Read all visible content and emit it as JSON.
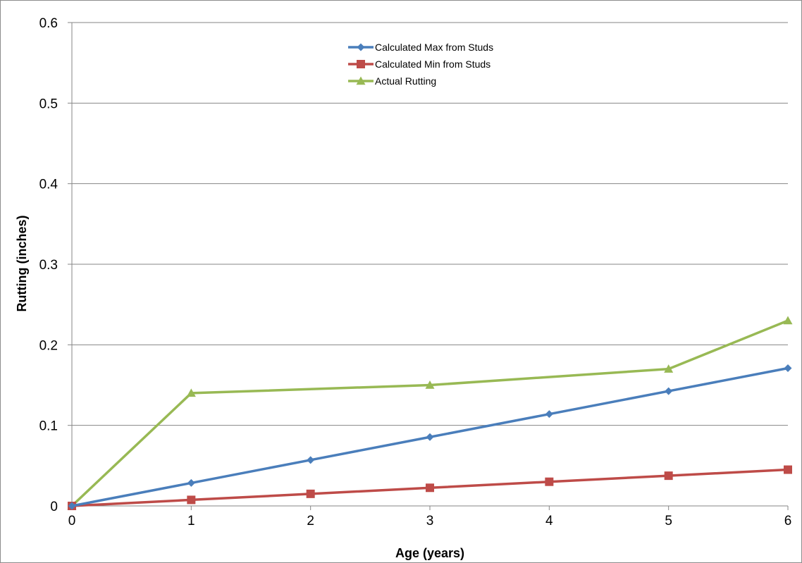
{
  "chart_data": {
    "type": "line",
    "title": "",
    "xlabel": "Age (years)",
    "ylabel": "Rutting (inches)",
    "xlim": [
      0,
      6
    ],
    "ylim": [
      0,
      0.6
    ],
    "x_ticks": [
      "0",
      "1",
      "2",
      "3",
      "4",
      "5",
      "6"
    ],
    "y_ticks": [
      "0",
      "0.1",
      "0.2",
      "0.3",
      "0.4",
      "0.5",
      "0.6"
    ],
    "grid": "horizontal",
    "legend_position": "top-center",
    "series": [
      {
        "name": "Calculated Max from Studs",
        "color": "#4a7ebb",
        "marker": "diamond",
        "x": [
          0,
          1,
          2,
          3,
          4,
          5,
          6
        ],
        "y": [
          0,
          0.0285,
          0.057,
          0.0855,
          0.114,
          0.1425,
          0.171
        ]
      },
      {
        "name": "Calculated Min from Studs",
        "color": "#be4b48",
        "marker": "square",
        "x": [
          0,
          1,
          2,
          3,
          4,
          5,
          6
        ],
        "y": [
          0,
          0.0075,
          0.015,
          0.0225,
          0.03,
          0.0375,
          0.045
        ]
      },
      {
        "name": "Actual Rutting",
        "color": "#98b954",
        "marker": "triangle",
        "x": [
          0,
          1,
          3,
          5,
          6
        ],
        "y": [
          0,
          0.14,
          0.15,
          0.17,
          0.23
        ]
      }
    ]
  }
}
